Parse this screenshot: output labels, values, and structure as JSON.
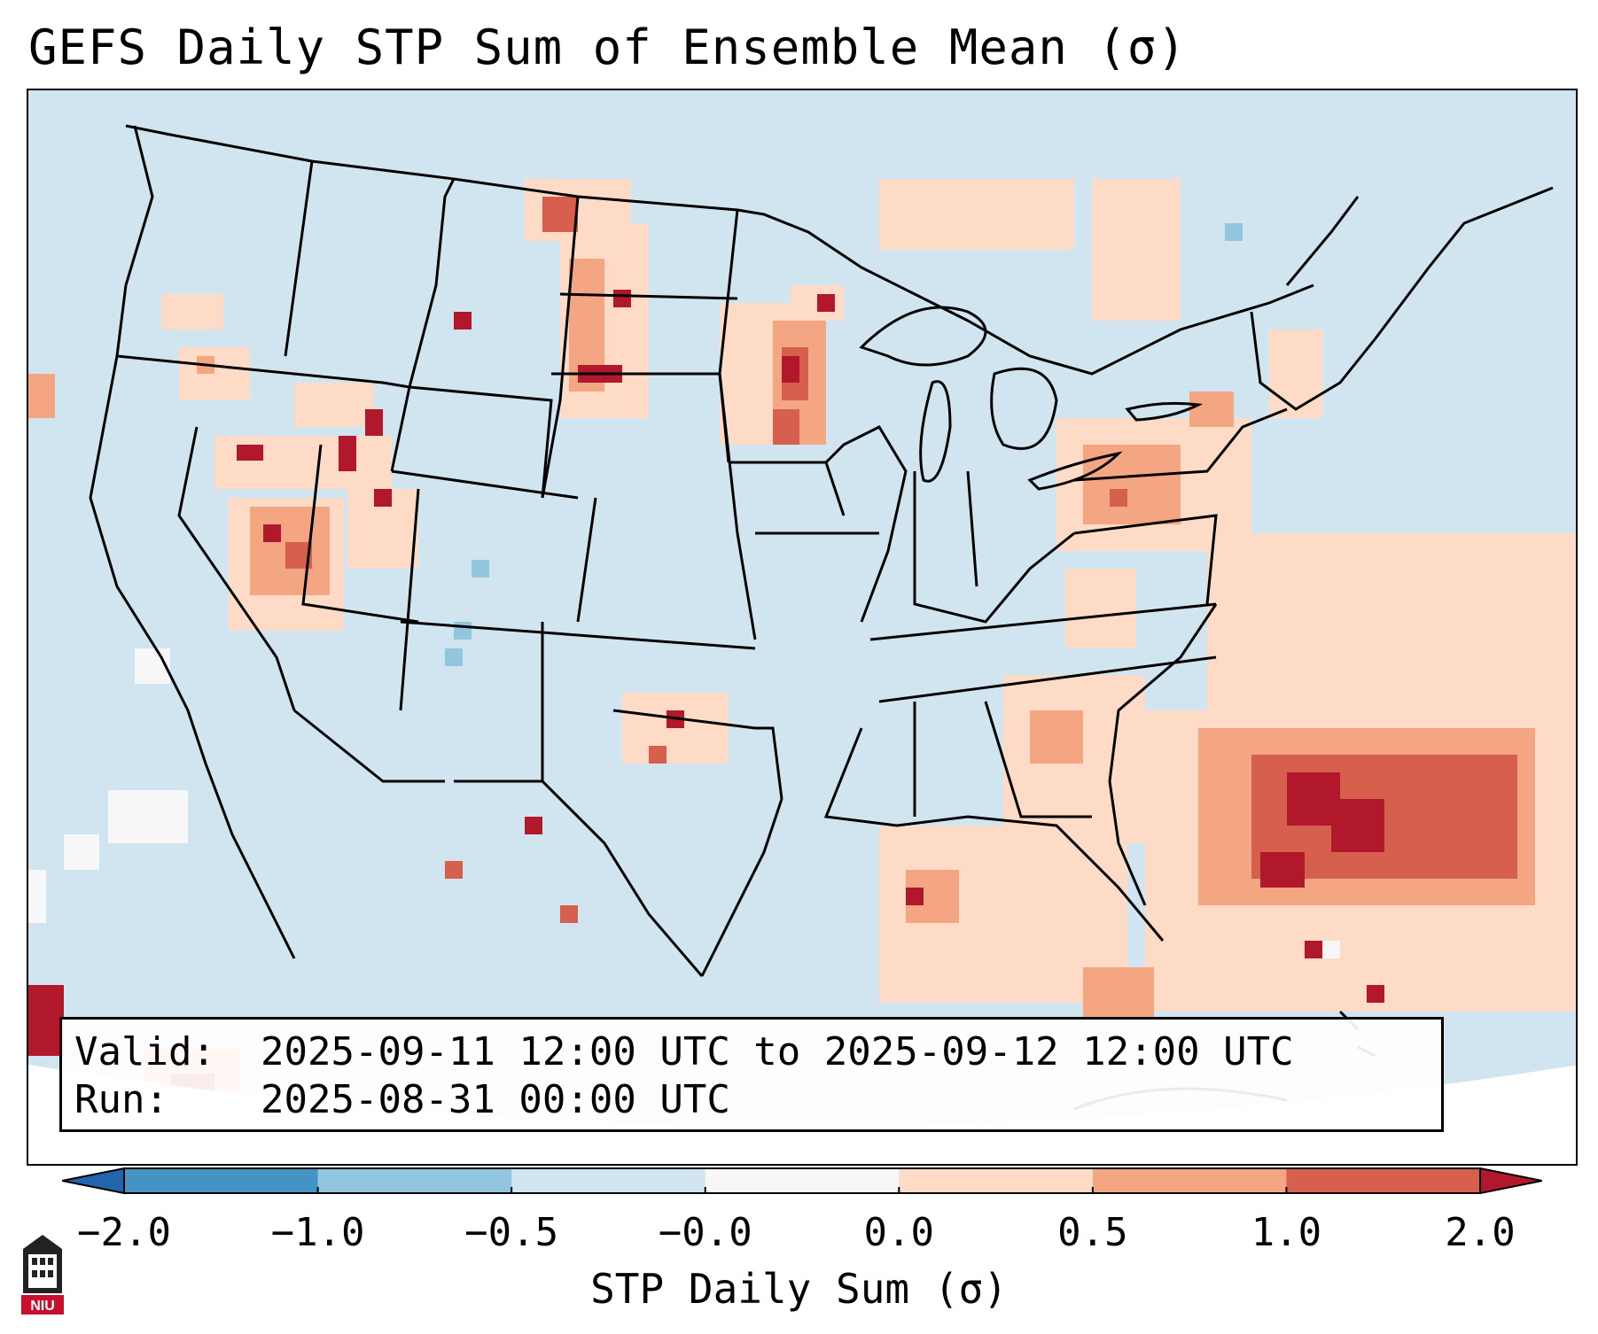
{
  "title": "GEFS Daily STP Sum of Ensemble Mean (σ)",
  "info": {
    "valid_label": "Valid:",
    "valid_value": "2025-09-11 12:00 UTC to 2025-09-12 12:00 UTC",
    "run_label": "Run:",
    "run_value": "2025-08-31 00:00 UTC"
  },
  "colorbar": {
    "label": "STP Daily Sum (σ)",
    "ticks": [
      "−2.0",
      "−1.0",
      "−0.5",
      "−0.0",
      "0.0",
      "0.5",
      "1.0",
      "2.0"
    ],
    "bin_colors": [
      "#4393c3",
      "#92c5de",
      "#d1e5f0",
      "#f7f7f7",
      "#fddbc7",
      "#f4a582",
      "#d6604d"
    ],
    "under_color": "#2166ac",
    "over_color": "#b2182b"
  },
  "logo": {
    "name": "NIU",
    "text": "NIU"
  },
  "colors": {
    "background": "#d1e5f0",
    "border": "#000000"
  }
}
